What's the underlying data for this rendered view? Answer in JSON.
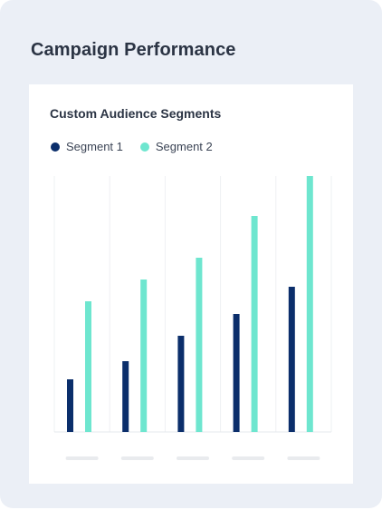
{
  "page": {
    "title": "Campaign Performance"
  },
  "card": {
    "title": "Custom Audience Segments"
  },
  "colors": {
    "segment1": "#0b2e6b",
    "segment2": "#6ee6cf",
    "grid": "#eef0f3",
    "baseline": "#e6e8ec",
    "placeholder": "#e9ebee"
  },
  "chart_data": {
    "type": "bar",
    "title": "Custom Audience Segments",
    "categories": [
      "",
      "",
      "",
      "",
      ""
    ],
    "series": [
      {
        "name": "Segment 1",
        "values": [
          29,
          39,
          53,
          65,
          80
        ]
      },
      {
        "name": "Segment 2",
        "values": [
          72,
          84,
          96,
          119,
          141
        ]
      }
    ],
    "ylim": [
      0,
      141
    ],
    "grid": "vertical",
    "legend": "top-left"
  }
}
